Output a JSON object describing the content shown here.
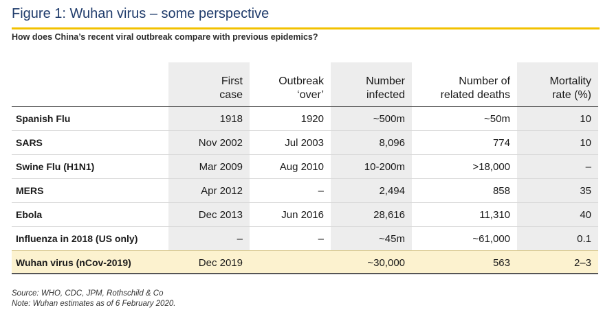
{
  "title": "Figure 1: Wuhan virus – some perspective",
  "subtitle": "How does China’s recent viral outbreak compare with previous epidemics?",
  "colors": {
    "title": "#1f3b6b",
    "accent_rule": "#f2c100",
    "highlight_row": "#fcf2cf",
    "shaded_column": "#ededed"
  },
  "table": {
    "headers": [
      {
        "line1": "",
        "line2": ""
      },
      {
        "line1": "First",
        "line2": "case"
      },
      {
        "line1": "Outbreak",
        "line2": "‘over’"
      },
      {
        "line1": "Number",
        "line2": "infected"
      },
      {
        "line1": "Number of",
        "line2": "related deaths"
      },
      {
        "line1": "Mortality",
        "line2": "rate (%)"
      }
    ],
    "rows": [
      {
        "name": "Spanish Flu",
        "first_case": "1918",
        "over": "1920",
        "infected": "~500m",
        "deaths": "~50m",
        "mortality": "10"
      },
      {
        "name": "SARS",
        "first_case": "Nov 2002",
        "over": "Jul 2003",
        "infected": "8,096",
        "deaths": "774",
        "mortality": "10"
      },
      {
        "name": "Swine Flu (H1N1)",
        "first_case": "Mar 2009",
        "over": "Aug 2010",
        "infected": "10-200m",
        "deaths": ">18,000",
        "mortality": "–"
      },
      {
        "name": "MERS",
        "first_case": "Apr 2012",
        "over": "–",
        "infected": "2,494",
        "deaths": "858",
        "mortality": "35"
      },
      {
        "name": "Ebola",
        "first_case": "Dec 2013",
        "over": "Jun 2016",
        "infected": "28,616",
        "deaths": "11,310",
        "mortality": "40"
      },
      {
        "name": "Influenza in 2018 (US only)",
        "first_case": "–",
        "over": "–",
        "infected": "~45m",
        "deaths": "~61,000",
        "mortality": "0.1"
      }
    ],
    "highlight_row": {
      "name": "Wuhan virus (nCov-2019)",
      "first_case": "Dec 2019",
      "over": "",
      "infected": "~30,000",
      "deaths": "563",
      "mortality": "2–3"
    }
  },
  "source": {
    "line1": "Source: WHO, CDC, JPM, Rothschild & Co",
    "line2": "Note: Wuhan estimates as of 6 February 2020."
  }
}
